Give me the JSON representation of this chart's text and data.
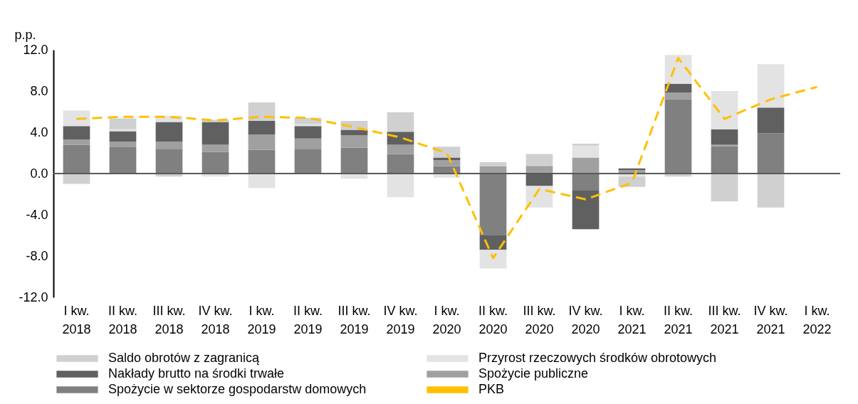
{
  "chart_data": {
    "type": "bar",
    "stacked": true,
    "ylabel": "p.p.",
    "categories": [
      "I kw. 2018",
      "II kw. 2018",
      "III kw. 2018",
      "IV kw. 2018",
      "I kw. 2019",
      "II kw. 2019",
      "III kw. 2019",
      "IV kw. 2019",
      "I kw. 2020",
      "II kw. 2020",
      "III kw. 2020",
      "IV kw. 2020",
      "I kw. 2021",
      "II kw. 2021",
      "III kw. 2021",
      "IV kw. 2021",
      "I kw. 2022"
    ],
    "series": [
      {
        "name": "Spożycie w sektorze gospodarstw domowych",
        "color": "#808080",
        "values": [
          2.8,
          2.6,
          2.4,
          2.1,
          2.3,
          2.4,
          2.5,
          1.9,
          0.7,
          -6.0,
          null,
          -1.6,
          null,
          7.2,
          2.65,
          3.9,
          null
        ]
      },
      {
        "name": "Spożycie publiczne",
        "color": "#a0a0a0",
        "values": [
          0.5,
          0.5,
          0.7,
          0.7,
          1.5,
          1.0,
          1.2,
          0.9,
          0.6,
          0.7,
          0.75,
          1.55,
          0.35,
          0.65,
          0.15,
          null,
          null
        ]
      },
      {
        "name": "Nakłady brutto na środki trwałe",
        "color": "#606060",
        "values": [
          1.3,
          1.0,
          1.9,
          2.2,
          1.3,
          1.2,
          0.55,
          1.25,
          0.25,
          -1.4,
          -1.2,
          -3.8,
          0.15,
          0.85,
          1.5,
          2.5,
          null
        ]
      },
      {
        "name": "Przyrost rzeczowych środków obrotowych",
        "color": "#e3e3e3",
        "values": [
          1.5,
          0.2,
          0.6,
          -0.3,
          -1.4,
          0.2,
          -0.5,
          -2.3,
          -0.4,
          -1.8,
          -2.1,
          1.15,
          -0.3,
          2.8,
          3.7,
          4.2,
          null
        ]
      },
      {
        "name": "Saldo obrotów z zagranicą",
        "color": "#d0d0d0",
        "values": [
          -1.0,
          1.05,
          -0.3,
          0.2,
          1.8,
          0.6,
          0.85,
          1.9,
          1.05,
          0.4,
          1.15,
          0.2,
          -1.0,
          -0.3,
          -2.7,
          -3.3,
          null
        ]
      },
      {
        "name": "PKB",
        "type": "line",
        "color": "#ffc000",
        "line_style": "dashed",
        "values": [
          5.3,
          5.5,
          5.5,
          5.15,
          5.5,
          5.4,
          4.5,
          3.5,
          2.0,
          -8.2,
          -1.5,
          -2.5,
          -0.9,
          11.2,
          5.3,
          7.2,
          8.4
        ]
      }
    ],
    "ylim": [
      -12,
      12
    ],
    "yticks": [
      {
        "value": -12,
        "label": "-12.0"
      },
      {
        "value": -8,
        "label": "-8.0"
      },
      {
        "value": -4,
        "label": "-4.0"
      },
      {
        "value": 0,
        "label": "0.0"
      },
      {
        "value": 4,
        "label": "4.0"
      },
      {
        "value": 8,
        "label": "8.0"
      },
      {
        "value": 12,
        "label": "12.0"
      }
    ],
    "ref_lines": [
      {
        "axis": "y",
        "value": 0,
        "color": "#595959"
      }
    ],
    "grid": false,
    "legend": "bottom"
  }
}
